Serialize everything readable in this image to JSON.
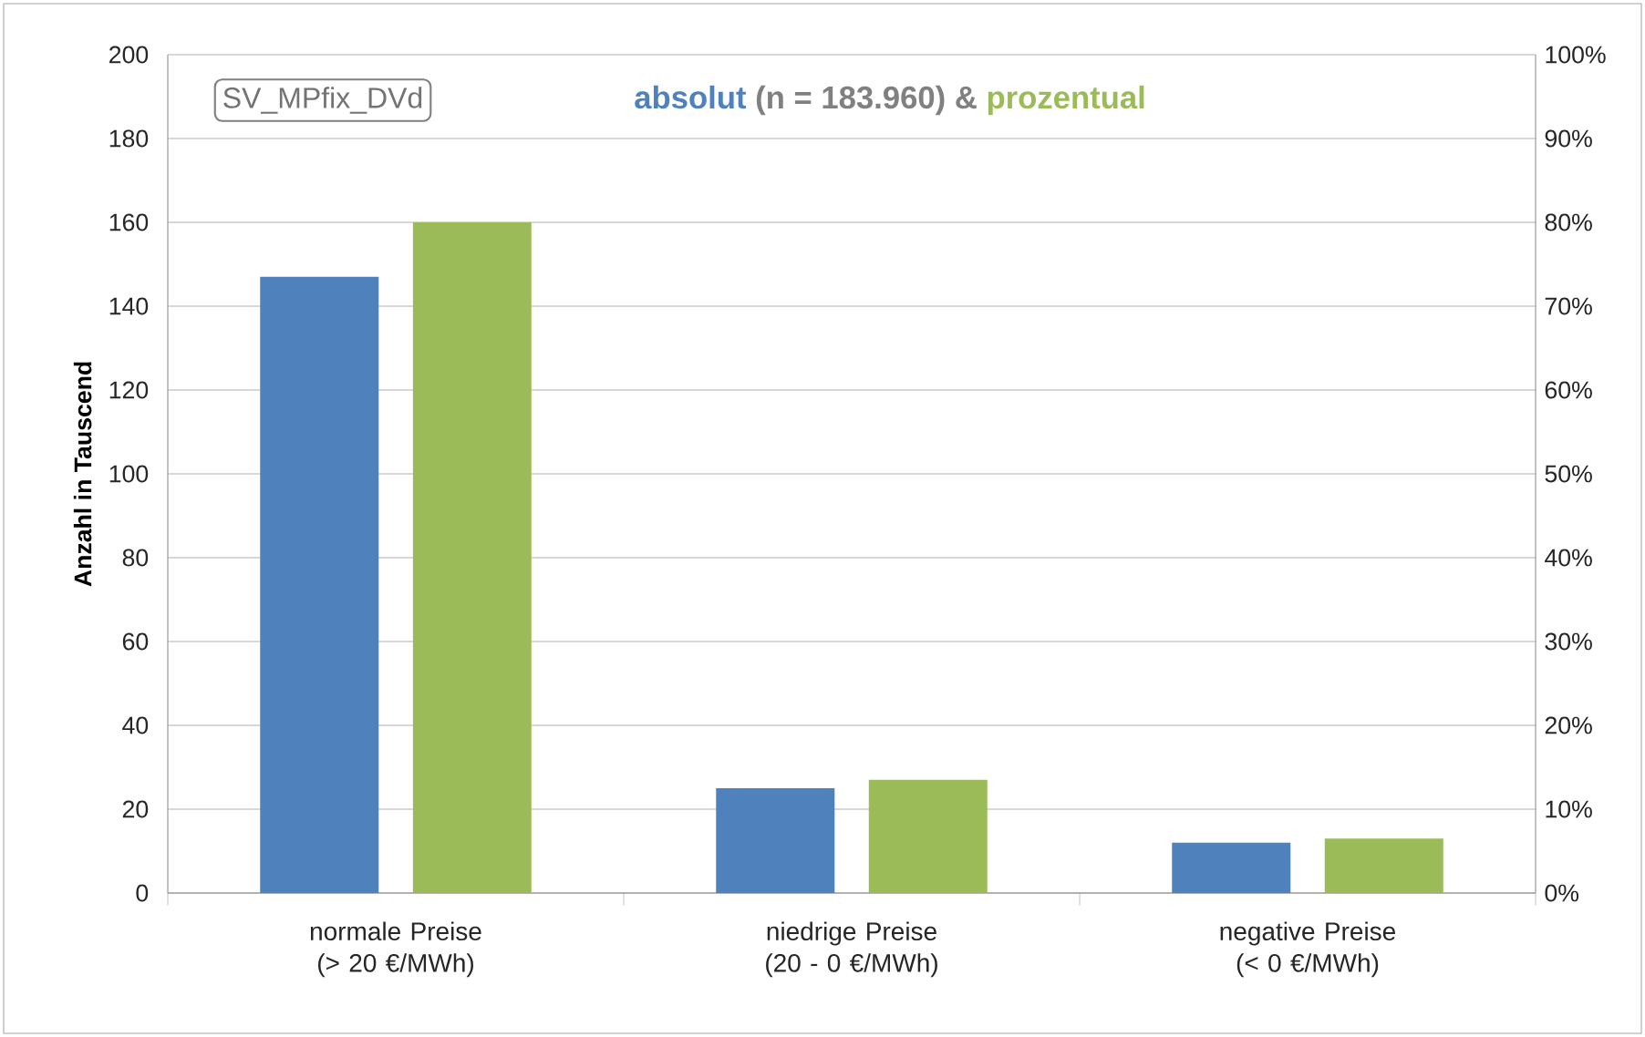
{
  "chart_data": {
    "type": "bar",
    "title": "SV_MPfix_DVd",
    "categories": [
      "normale Preise (> 20 €/MWh)",
      "niedrige Preise (20 - 0 €/MWh)",
      "negative Preise (< 0 €/MWh)"
    ],
    "series": [
      {
        "name": "absolut",
        "color": "#4f81bd",
        "values": [
          147,
          25,
          12
        ],
        "axis": "y"
      },
      {
        "name": "prozentual",
        "color": "#9bbb59",
        "values": [
          80,
          13.5,
          6.5
        ],
        "axis": "y2"
      }
    ],
    "annotations": [
      "(n = 183.960)",
      "&"
    ],
    "ylabel": "Anzahl in Tauscend",
    "ylim": [
      0,
      200
    ],
    "yticks": [
      0,
      20,
      40,
      60,
      80,
      100,
      120,
      140,
      160,
      180,
      200
    ],
    "y2lim": [
      0,
      100
    ],
    "y2ticks": [
      {
        "value": 0,
        "label": "0%"
      },
      {
        "value": 10,
        "label": "10%"
      },
      {
        "value": 20,
        "label": "20%"
      },
      {
        "value": 30,
        "label": "30%"
      },
      {
        "value": 40,
        "label": "40%"
      },
      {
        "value": 50,
        "label": "50%"
      },
      {
        "value": 60,
        "label": "60%"
      },
      {
        "value": 70,
        "label": "70%"
      },
      {
        "value": 80,
        "label": "80%"
      },
      {
        "value": 90,
        "label": "90%"
      },
      {
        "value": 100,
        "label": "100%"
      }
    ],
    "grid": "y"
  }
}
